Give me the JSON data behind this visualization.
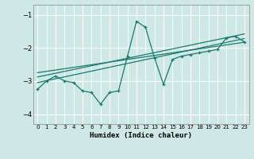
{
  "xlabel": "Humidex (Indice chaleur)",
  "bg_color": "#cde8e5",
  "grid_color": "#ffffff",
  "line_color": "#1a7a6e",
  "xlim": [
    -0.5,
    23.5
  ],
  "ylim": [
    -4.3,
    -0.7
  ],
  "yticks": [
    -4,
    -3,
    -2,
    -1
  ],
  "xticks": [
    0,
    1,
    2,
    3,
    4,
    5,
    6,
    7,
    8,
    9,
    10,
    11,
    12,
    13,
    14,
    15,
    16,
    17,
    18,
    19,
    20,
    21,
    22,
    23
  ],
  "main_line_x": [
    0,
    1,
    2,
    3,
    4,
    5,
    6,
    7,
    8,
    9,
    10,
    11,
    12,
    13,
    14,
    15,
    16,
    17,
    18,
    19,
    20,
    21,
    22,
    23
  ],
  "main_line_y": [
    -3.25,
    -3.0,
    -2.85,
    -3.0,
    -3.05,
    -3.3,
    -3.35,
    -3.7,
    -3.35,
    -3.3,
    -2.25,
    -1.2,
    -1.38,
    -2.3,
    -3.1,
    -2.35,
    -2.25,
    -2.2,
    -2.15,
    -2.1,
    -2.05,
    -1.7,
    -1.65,
    -1.82
  ],
  "line2_x": [
    0,
    23
  ],
  "line2_y": [
    -3.05,
    -1.72
  ],
  "line3_x": [
    0,
    23
  ],
  "line3_y": [
    -2.88,
    -1.58
  ],
  "line4_x": [
    0,
    23
  ],
  "line4_y": [
    -2.75,
    -1.83
  ]
}
